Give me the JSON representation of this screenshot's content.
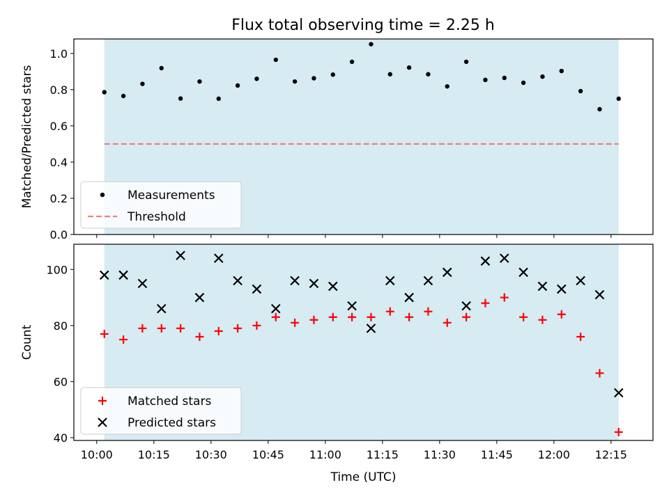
{
  "title": "Flux total observing time = 2.25 h",
  "colors": {
    "band": "#add8e6",
    "measurements": "#000000",
    "threshold": "#f08080",
    "matched": "#ff0000",
    "predicted": "#000000"
  },
  "chart_data": [
    {
      "type": "scatter",
      "ylabel": "Matched/Predicted stars",
      "ylim": [
        0,
        1.08
      ],
      "yticks": [
        0.0,
        0.2,
        0.4,
        0.6,
        0.8,
        1.0
      ],
      "ytick_labels": [
        "0.0",
        "0.2",
        "0.4",
        "0.6",
        "0.8",
        "1.0"
      ],
      "grid": false,
      "legend_position": "lower-left",
      "shaded_interval": [
        "10:02",
        "12:17"
      ],
      "series": [
        {
          "name": "Measurements",
          "marker": "dot",
          "x": [
            "10:02",
            "10:07",
            "10:12",
            "10:17",
            "10:22",
            "10:27",
            "10:32",
            "10:37",
            "10:42",
            "10:47",
            "10:52",
            "10:57",
            "11:02",
            "11:07",
            "11:12",
            "11:17",
            "11:22",
            "11:27",
            "11:32",
            "11:37",
            "11:42",
            "11:47",
            "11:52",
            "11:57",
            "12:02",
            "12:07",
            "12:12",
            "12:17"
          ],
          "y": [
            0.786,
            0.765,
            0.832,
            0.919,
            0.751,
            0.845,
            0.75,
            0.823,
            0.86,
            0.965,
            0.845,
            0.863,
            0.883,
            0.954,
            1.051,
            0.885,
            0.922,
            0.885,
            0.818,
            0.954,
            0.854,
            0.865,
            0.838,
            0.872,
            0.903,
            0.792,
            0.692,
            0.75
          ]
        },
        {
          "name": "Threshold",
          "marker": "dashed-line",
          "x": [
            "10:02",
            "12:17"
          ],
          "y": [
            0.5,
            0.5
          ]
        }
      ]
    },
    {
      "type": "scatter",
      "xlabel": "Time (UTC)",
      "ylabel": "Count",
      "ylim": [
        39,
        109
      ],
      "yticks": [
        40,
        60,
        80,
        100
      ],
      "ytick_labels": [
        "40",
        "60",
        "80",
        "100"
      ],
      "xlim": [
        "09:54",
        "12:26"
      ],
      "xticks": [
        "10:00",
        "10:15",
        "10:30",
        "10:45",
        "11:00",
        "11:15",
        "11:30",
        "11:45",
        "12:00",
        "12:15"
      ],
      "grid": false,
      "legend_position": "lower-left",
      "shaded_interval": [
        "10:02",
        "12:17"
      ],
      "series": [
        {
          "name": "Matched stars",
          "marker": "plus",
          "x": [
            "10:02",
            "10:07",
            "10:12",
            "10:17",
            "10:22",
            "10:27",
            "10:32",
            "10:37",
            "10:42",
            "10:47",
            "10:52",
            "10:57",
            "11:02",
            "11:07",
            "11:12",
            "11:17",
            "11:22",
            "11:27",
            "11:32",
            "11:37",
            "11:42",
            "11:47",
            "11:52",
            "11:57",
            "12:02",
            "12:07",
            "12:12",
            "12:17"
          ],
          "y": [
            77,
            75,
            79,
            79,
            79,
            76,
            78,
            79,
            80,
            83,
            81,
            82,
            83,
            83,
            83,
            85,
            83,
            85,
            81,
            83,
            88,
            90,
            83,
            82,
            84,
            76,
            63,
            42
          ]
        },
        {
          "name": "Predicted stars",
          "marker": "x",
          "x": [
            "10:02",
            "10:07",
            "10:12",
            "10:17",
            "10:22",
            "10:27",
            "10:32",
            "10:37",
            "10:42",
            "10:47",
            "10:52",
            "10:57",
            "11:02",
            "11:07",
            "11:12",
            "11:17",
            "11:22",
            "11:27",
            "11:32",
            "11:37",
            "11:42",
            "11:47",
            "11:52",
            "11:57",
            "12:02",
            "12:07",
            "12:12",
            "12:17"
          ],
          "y": [
            98,
            98,
            95,
            86,
            105,
            90,
            104,
            96,
            93,
            86,
            96,
            95,
            94,
            87,
            79,
            96,
            90,
            96,
            99,
            87,
            103,
            104,
            99,
            94,
            93,
            96,
            91,
            56
          ]
        }
      ]
    }
  ]
}
